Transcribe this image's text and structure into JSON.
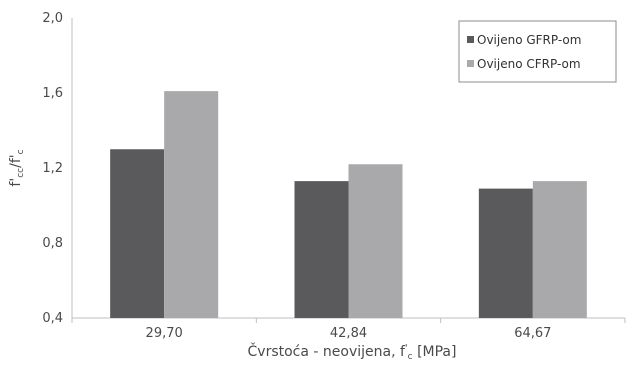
{
  "chart_data": {
    "type": "bar",
    "categories": [
      "29,70",
      "42,84",
      "64,67"
    ],
    "series": [
      {
        "name": "Ovijeno GFRP-om",
        "values": [
          1.3,
          1.13,
          1.09
        ],
        "color": "#5a5a5c"
      },
      {
        "name": "Ovijeno CFRP-om",
        "values": [
          1.61,
          1.22,
          1.13
        ],
        "color": "#a9a9ab"
      }
    ],
    "xlabel": {
      "main": "Čvrstoća - neovijena, f",
      "sup": "'",
      "sub": "c",
      "unit": " [MPa]"
    },
    "ylabel": {
      "f": "f",
      "prime": "'",
      "sub_cc": "cc",
      "slash": "/f",
      "sub_c": "c"
    },
    "yticks": [
      "0,4",
      "0,8",
      "1,2",
      "1,6",
      "2,0"
    ],
    "ylim": [
      0.4,
      2.0
    ],
    "grid": false,
    "legend_position": "top-right"
  }
}
